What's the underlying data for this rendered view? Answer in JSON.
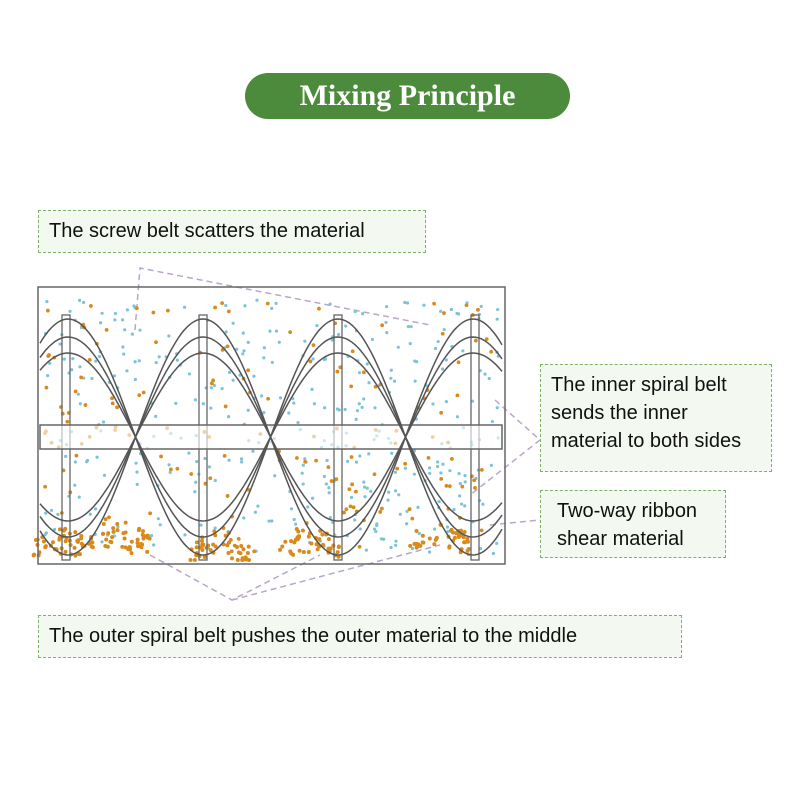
{
  "title": "Mixing Principle",
  "callouts": {
    "top": "The screw belt scatters the material",
    "inner": "The inner spiral belt sends the inner material to both sides",
    "shear": "Two-way ribbon shear material",
    "outer": "The outer spiral belt pushes the outer material to the middle"
  },
  "colors": {
    "title_bg": "#4b8b3b",
    "callout_border": "#7cb36a",
    "callout_bg": "#f3f9f0",
    "dot_orange": "#d98a1c",
    "dot_blue": "#7cc3d9",
    "ribbon": "#555555",
    "leader": "#b9a6c9"
  }
}
